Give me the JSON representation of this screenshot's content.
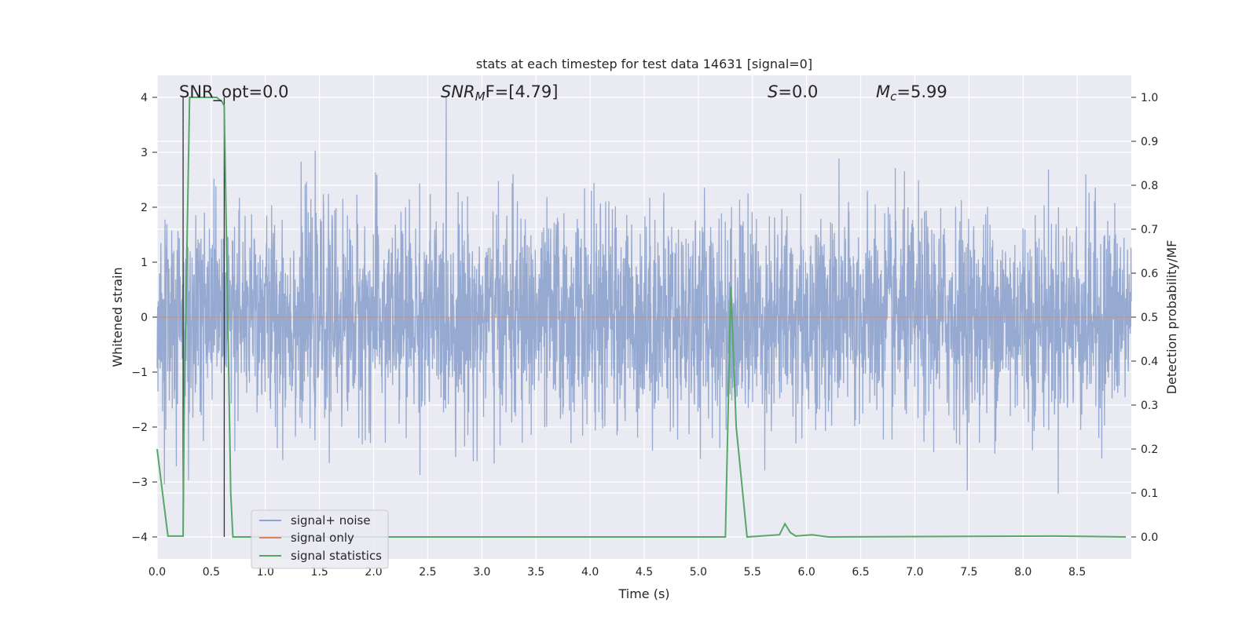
{
  "chart_data": {
    "type": "line",
    "title": "stats at each timestep for test data 14631 [signal=0]",
    "xlabel": "Time (s)",
    "ylabel": "Whitened strain",
    "y2label": "Detection probability/MF",
    "xlim": [
      0,
      9.0
    ],
    "ylim": [
      -4.4,
      4.4
    ],
    "y2lim": [
      -0.05,
      1.05
    ],
    "xticks": [
      "0.0",
      "0.5",
      "1.0",
      "1.5",
      "2.0",
      "2.5",
      "3.0",
      "3.5",
      "4.0",
      "4.5",
      "5.0",
      "5.5",
      "6.0",
      "6.5",
      "7.0",
      "7.5",
      "8.0",
      "8.5"
    ],
    "yticks": [
      "4",
      "3",
      "2",
      "1",
      "0",
      "−1",
      "−2",
      "−3",
      "−4"
    ],
    "y2ticks": [
      "1.0",
      "0.9",
      "0.8",
      "0.7",
      "0.6",
      "0.5",
      "0.4",
      "0.3",
      "0.2",
      "0.1",
      "0.0"
    ],
    "annotations": {
      "snr_opt": "SNR_opt=0.0",
      "snr_mf_base": "SNR",
      "snr_mf_sub": "M",
      "snr_mf_rest": "F=[4.79]",
      "s_label": "S",
      "s_value": "=0.0",
      "mc_base": "M",
      "mc_sub": "c",
      "mc_value": "=5.99"
    },
    "legend": {
      "position": "lower-left",
      "entries": [
        "signal+ noise",
        "signal only",
        "signal statistics"
      ]
    },
    "colors": {
      "noise": "#8da2cc",
      "signal_only": "#dd8452",
      "statistics": "#55a868",
      "vlines": "#333333",
      "background": "#eaeaf2",
      "grid": "#ffffff"
    },
    "series": [
      {
        "name": "signal+ noise",
        "description_range": [
          -3.9,
          4.0
        ],
        "typical_envelope": [
          -2.3,
          2.3
        ]
      },
      {
        "name": "signal only",
        "values_constant": 0.0
      },
      {
        "name": "signal statistics",
        "x": [
          0.0,
          0.05,
          0.1,
          0.24,
          0.25,
          0.3,
          0.55,
          0.6,
          0.62,
          0.68,
          0.7,
          5.25,
          5.3,
          5.35,
          5.45,
          5.75,
          5.8,
          5.85,
          5.9,
          6.05,
          6.2,
          8.3,
          8.95
        ],
        "y": [
          0.2,
          0.1,
          0.002,
          0.002,
          0.3,
          1.0,
          1.0,
          0.99,
          0.98,
          0.1,
          0.0,
          0.0,
          0.57,
          0.25,
          0.0,
          0.005,
          0.03,
          0.01,
          0.002,
          0.005,
          0.0,
          0.002,
          0.0
        ]
      }
    ],
    "vlines_x": [
      0.24,
      0.62
    ]
  }
}
